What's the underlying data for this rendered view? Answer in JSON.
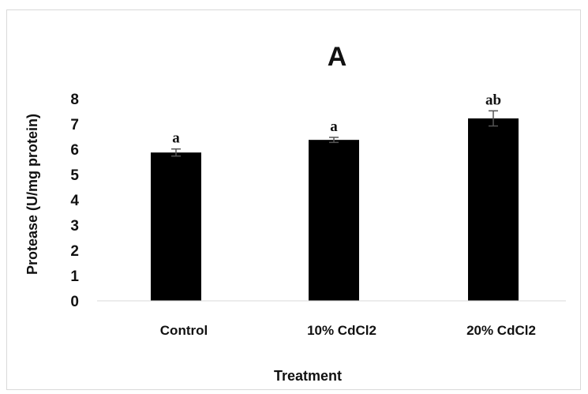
{
  "chart_data": {
    "type": "bar",
    "title": "A",
    "xlabel": "Treatment",
    "ylabel": "Protease (U/mg protein)",
    "categories": [
      "Control",
      "10% CdCl2",
      "20% CdCl2"
    ],
    "values": [
      5.87,
      6.37,
      7.22
    ],
    "errors": [
      0.14,
      0.1,
      0.3
    ],
    "significance_labels": [
      "a",
      "a",
      "ab"
    ],
    "yticks": [
      "0",
      "1",
      "2",
      "3",
      "4",
      "5",
      "6",
      "7",
      "8"
    ],
    "ylim": [
      0,
      8
    ],
    "grid": false,
    "legend": "none",
    "bar_color": "#000000"
  }
}
